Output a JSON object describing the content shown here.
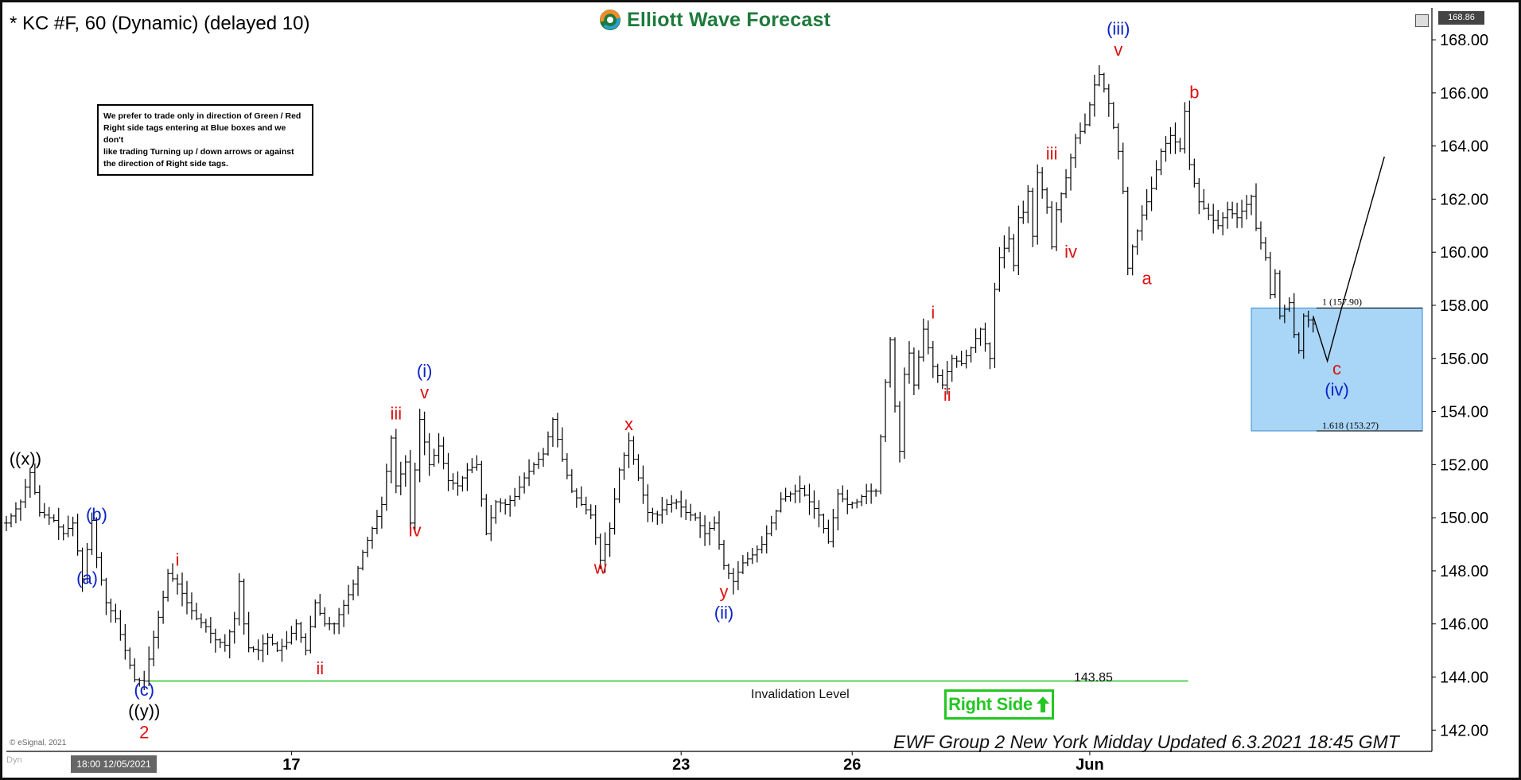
{
  "header": {
    "title": "* KC #F, 60 (Dynamic) (delayed 10)",
    "logo_text": "Elliott Wave Forecast",
    "last_price": "168.86"
  },
  "note": {
    "lines": [
      "We prefer to trade only in direction of Green / Red",
      "Right side tags entering at Blue boxes and we don't",
      "like trading Turning up / down arrows or against",
      "the direction of Right side tags."
    ]
  },
  "invalidation": {
    "label": "Invalidation Level",
    "value": "143.85"
  },
  "right_side_tag": {
    "label": "Right Side",
    "color": "#22c722"
  },
  "footer": {
    "esignal": "© eSignal, 2021",
    "dyn": "Dyn",
    "cursor_date": "18:00 12/05/2021",
    "updated": "EWF Group 2 New York Midday Updated 6.3.2021 18:45 GMT"
  },
  "blue_box": {
    "upper_label": "1 (157.90)",
    "upper": 157.9,
    "lower_label": "1.618 (153.27)",
    "lower": 153.27,
    "color": "#a9d5f7"
  },
  "chart_data": {
    "type": "ohlc",
    "symbol": "KC #F",
    "interval": "60",
    "ylim": [
      141.2,
      169.2
    ],
    "yticks": [
      "142.00",
      "144.00",
      "146.00",
      "148.00",
      "150.00",
      "152.00",
      "154.00",
      "156.00",
      "158.00",
      "160.00",
      "162.00",
      "164.00",
      "166.00",
      "168.00"
    ],
    "xticks": [
      "17",
      "23",
      "26",
      "Jun"
    ],
    "colors": {
      "bars": "#000000",
      "red_label": "#dd1111",
      "blue_label": "#0b22c8",
      "black_label": "#000000",
      "invalidation_line": "#22c722"
    },
    "path": [
      [
        0,
        149.8
      ],
      [
        3,
        150.6
      ],
      [
        5,
        151.7
      ],
      [
        7,
        150.2
      ],
      [
        10,
        149.9
      ],
      [
        12,
        149.4
      ],
      [
        14,
        149.8
      ],
      [
        16,
        147.7
      ],
      [
        18,
        149.9
      ],
      [
        19,
        148.5
      ],
      [
        21,
        146.8
      ],
      [
        23,
        146.2
      ],
      [
        25,
        145.0
      ],
      [
        27,
        143.9
      ],
      [
        29,
        143.85
      ],
      [
        31,
        145.5
      ],
      [
        33,
        147.0
      ],
      [
        34,
        147.9
      ],
      [
        36,
        147.5
      ],
      [
        38,
        146.8
      ],
      [
        40,
        146.2
      ],
      [
        42,
        145.9
      ],
      [
        44,
        145.4
      ],
      [
        46,
        145.2
      ],
      [
        48,
        146.2
      ],
      [
        49,
        147.6
      ],
      [
        50,
        146.0
      ],
      [
        51,
        145.1
      ],
      [
        53,
        145.0
      ],
      [
        55,
        145.5
      ],
      [
        57,
        145.0
      ],
      [
        59,
        145.3
      ],
      [
        61,
        146.0
      ],
      [
        63,
        145.0
      ],
      [
        65,
        146.8
      ],
      [
        67,
        146.0
      ],
      [
        69,
        146.0
      ],
      [
        71,
        146.7
      ],
      [
        73,
        147.5
      ],
      [
        75,
        148.7
      ],
      [
        77,
        149.6
      ],
      [
        79,
        150.5
      ],
      [
        81,
        153.0
      ],
      [
        82,
        151.2
      ],
      [
        84,
        152.1
      ],
      [
        85,
        149.8
      ],
      [
        86,
        151.8
      ],
      [
        87,
        153.7
      ],
      [
        89,
        152.0
      ],
      [
        91,
        152.7
      ],
      [
        93,
        151.4
      ],
      [
        95,
        151.2
      ],
      [
        97,
        151.8
      ],
      [
        99,
        152.0
      ],
      [
        101,
        149.4
      ],
      [
        103,
        150.6
      ],
      [
        105,
        150.5
      ],
      [
        107,
        150.8
      ],
      [
        109,
        151.5
      ],
      [
        111,
        152.0
      ],
      [
        113,
        152.4
      ],
      [
        115,
        153.7
      ],
      [
        117,
        152.2
      ],
      [
        119,
        151.0
      ],
      [
        121,
        150.5
      ],
      [
        123,
        150.1
      ],
      [
        125,
        148.4
      ],
      [
        127,
        149.6
      ],
      [
        129,
        151.8
      ],
      [
        131,
        152.9
      ],
      [
        133,
        151.5
      ],
      [
        135,
        150.2
      ],
      [
        137,
        150.1
      ],
      [
        139,
        150.5
      ],
      [
        141,
        150.6
      ],
      [
        143,
        150.2
      ],
      [
        145,
        150.0
      ],
      [
        147,
        149.4
      ],
      [
        149,
        149.8
      ],
      [
        151,
        148.2
      ],
      [
        153,
        147.6
      ],
      [
        155,
        148.3
      ],
      [
        157,
        148.6
      ],
      [
        159,
        149.0
      ],
      [
        161,
        149.8
      ],
      [
        163,
        150.7
      ],
      [
        165,
        150.9
      ],
      [
        167,
        151.1
      ],
      [
        169,
        150.6
      ],
      [
        171,
        150.1
      ],
      [
        173,
        149.1
      ],
      [
        175,
        150.9
      ],
      [
        177,
        150.5
      ],
      [
        179,
        150.6
      ],
      [
        181,
        151.0
      ],
      [
        183,
        151.0
      ],
      [
        185,
        155.1
      ],
      [
        186,
        156.7
      ],
      [
        187,
        154.2
      ],
      [
        188,
        152.5
      ],
      [
        189,
        155.4
      ],
      [
        190,
        156.2
      ],
      [
        191,
        155.0
      ],
      [
        193,
        157.1
      ],
      [
        195,
        155.7
      ],
      [
        197,
        155.0
      ],
      [
        199,
        156.0
      ],
      [
        201,
        155.8
      ],
      [
        203,
        156.4
      ],
      [
        205,
        157.1
      ],
      [
        207,
        156.0
      ],
      [
        208,
        158.6
      ],
      [
        209,
        159.8
      ],
      [
        211,
        160.5
      ],
      [
        212,
        159.5
      ],
      [
        213,
        161.3
      ],
      [
        214,
        161.5
      ],
      [
        215,
        162.3
      ],
      [
        216,
        160.6
      ],
      [
        217,
        163.0
      ],
      [
        219,
        161.7
      ],
      [
        220,
        160.2
      ],
      [
        221,
        161.6
      ],
      [
        223,
        162.8
      ],
      [
        225,
        164.3
      ],
      [
        227,
        164.8
      ],
      [
        229,
        166.3
      ],
      [
        230,
        166.7
      ],
      [
        232,
        165.6
      ],
      [
        234,
        163.8
      ],
      [
        235,
        162.3
      ],
      [
        236,
        159.4
      ],
      [
        237,
        160.2
      ],
      [
        239,
        161.4
      ],
      [
        241,
        162.4
      ],
      [
        243,
        163.8
      ],
      [
        245,
        164.4
      ],
      [
        247,
        163.9
      ],
      [
        248,
        165.3
      ],
      [
        249,
        163.3
      ],
      [
        251,
        161.9
      ],
      [
        253,
        161.4
      ],
      [
        255,
        161.0
      ],
      [
        257,
        161.6
      ],
      [
        259,
        161.3
      ],
      [
        261,
        161.8
      ],
      [
        262,
        162.1
      ],
      [
        263,
        160.9
      ],
      [
        265,
        159.8
      ],
      [
        266,
        158.4
      ],
      [
        267,
        159.2
      ],
      [
        268,
        157.6
      ],
      [
        270,
        158.1
      ],
      [
        271,
        156.9
      ],
      [
        272,
        156.3
      ],
      [
        273,
        157.6
      ],
      [
        275,
        157.3
      ]
    ],
    "projection": [
      [
        275,
        157.6
      ],
      [
        278,
        155.9
      ],
      [
        281,
        157.9
      ],
      [
        290,
        163.6
      ]
    ],
    "labels": [
      {
        "text": "((x))",
        "x": 4,
        "y": 152.0,
        "color": "black"
      },
      {
        "text": "(b)",
        "x": 19,
        "y": 149.9,
        "color": "blue"
      },
      {
        "text": "(a)",
        "x": 17,
        "y": 147.5,
        "color": "blue"
      },
      {
        "text": "(c)",
        "x": 29,
        "y": 143.3,
        "color": "blue"
      },
      {
        "text": "((y))",
        "x": 29,
        "y": 142.5,
        "color": "black"
      },
      {
        "text": "2",
        "x": 29,
        "y": 141.7,
        "color": "red"
      },
      {
        "text": "i",
        "x": 36,
        "y": 148.2,
        "color": "red"
      },
      {
        "text": "ii",
        "x": 66,
        "y": 144.1,
        "color": "red"
      },
      {
        "text": "iii",
        "x": 82,
        "y": 153.7,
        "color": "red"
      },
      {
        "text": "iv",
        "x": 86,
        "y": 149.3,
        "color": "red"
      },
      {
        "text": "(i)",
        "x": 88,
        "y": 155.3,
        "color": "blue"
      },
      {
        "text": "v",
        "x": 88,
        "y": 154.5,
        "color": "red"
      },
      {
        "text": "w",
        "x": 125,
        "y": 147.9,
        "color": "red"
      },
      {
        "text": "x",
        "x": 131,
        "y": 153.3,
        "color": "red"
      },
      {
        "text": "y",
        "x": 151,
        "y": 147.0,
        "color": "red"
      },
      {
        "text": "(ii)",
        "x": 151,
        "y": 146.2,
        "color": "blue"
      },
      {
        "text": "i",
        "x": 195,
        "y": 157.5,
        "color": "red"
      },
      {
        "text": "ii",
        "x": 198,
        "y": 154.4,
        "color": "red"
      },
      {
        "text": "iii",
        "x": 220,
        "y": 163.5,
        "color": "red"
      },
      {
        "text": "iv",
        "x": 224,
        "y": 159.8,
        "color": "red"
      },
      {
        "text": "(iii)",
        "x": 234,
        "y": 168.2,
        "color": "blue"
      },
      {
        "text": "v",
        "x": 234,
        "y": 167.4,
        "color": "red"
      },
      {
        "text": "a",
        "x": 240,
        "y": 158.8,
        "color": "red"
      },
      {
        "text": "b",
        "x": 250,
        "y": 165.8,
        "color": "red"
      },
      {
        "text": "c",
        "x": 280,
        "y": 155.4,
        "color": "red"
      },
      {
        "text": "(iv)",
        "x": 280,
        "y": 154.6,
        "color": "blue"
      }
    ],
    "xtick_positions": [
      60,
      142,
      178,
      228
    ],
    "invalidation_range_x": [
      30,
      242
    ],
    "box_range_x": [
      262,
      298
    ]
  }
}
